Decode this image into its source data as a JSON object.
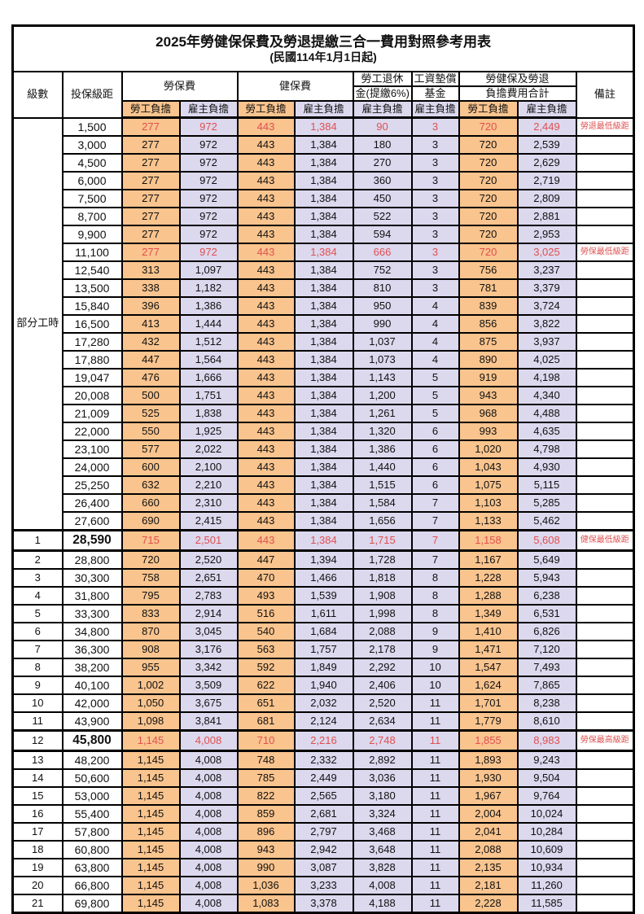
{
  "title": "2025年勞健保保費及勞退提繳三合一費用對照參考用表",
  "subtitle": "(民國114年1月1日起)",
  "header": {
    "level": "級數",
    "bracket": "投保級距",
    "labor_insurance": "勞保費",
    "health_insurance": "健保費",
    "pension_line1": "勞工退休",
    "pension_line2": "金(提繳6%)",
    "wage_fund_line1": "工資墊償",
    "wage_fund_line2": "基金",
    "total_line1": "勞健保及勞退",
    "total_line2": "負擔費用合計",
    "remark": "備註",
    "employee": "勞工負擔",
    "employer": "雇主負擔"
  },
  "part_time_label": "部分工時",
  "part_time_rowspan": 23,
  "colors": {
    "employee_bg": "#F9C48E",
    "employer_bg": "#DCD8EE",
    "highlight_text": "#E05050",
    "grid": "#000000"
  },
  "remarks_legend": {
    "pension_min": "勞退最低級距",
    "labor_min": "勞保最低級距",
    "health_min": "健保最低級距",
    "labor_max": "勞保最高級距"
  },
  "rows": [
    {
      "br": "1,500",
      "a": "277",
      "b": "972",
      "c": "443",
      "d": "1,384",
      "e": "90",
      "f": "3",
      "g": "720",
      "h": "2,449",
      "rk": "勞退最低級距",
      "red": true
    },
    {
      "br": "3,000",
      "a": "277",
      "b": "972",
      "c": "443",
      "d": "1,384",
      "e": "180",
      "f": "3",
      "g": "720",
      "h": "2,539"
    },
    {
      "br": "4,500",
      "a": "277",
      "b": "972",
      "c": "443",
      "d": "1,384",
      "e": "270",
      "f": "3",
      "g": "720",
      "h": "2,629"
    },
    {
      "br": "6,000",
      "a": "277",
      "b": "972",
      "c": "443",
      "d": "1,384",
      "e": "360",
      "f": "3",
      "g": "720",
      "h": "2,719"
    },
    {
      "br": "7,500",
      "a": "277",
      "b": "972",
      "c": "443",
      "d": "1,384",
      "e": "450",
      "f": "3",
      "g": "720",
      "h": "2,809"
    },
    {
      "br": "8,700",
      "a": "277",
      "b": "972",
      "c": "443",
      "d": "1,384",
      "e": "522",
      "f": "3",
      "g": "720",
      "h": "2,881"
    },
    {
      "br": "9,900",
      "a": "277",
      "b": "972",
      "c": "443",
      "d": "1,384",
      "e": "594",
      "f": "3",
      "g": "720",
      "h": "2,953"
    },
    {
      "br": "11,100",
      "a": "277",
      "b": "972",
      "c": "443",
      "d": "1,384",
      "e": "666",
      "f": "3",
      "g": "720",
      "h": "3,025",
      "rk": "勞保最低級距",
      "red": true
    },
    {
      "br": "12,540",
      "a": "313",
      "b": "1,097",
      "c": "443",
      "d": "1,384",
      "e": "752",
      "f": "3",
      "g": "756",
      "h": "3,237"
    },
    {
      "br": "13,500",
      "a": "338",
      "b": "1,182",
      "c": "443",
      "d": "1,384",
      "e": "810",
      "f": "3",
      "g": "781",
      "h": "3,379"
    },
    {
      "br": "15,840",
      "a": "396",
      "b": "1,386",
      "c": "443",
      "d": "1,384",
      "e": "950",
      "f": "4",
      "g": "839",
      "h": "3,724"
    },
    {
      "br": "16,500",
      "a": "413",
      "b": "1,444",
      "c": "443",
      "d": "1,384",
      "e": "990",
      "f": "4",
      "g": "856",
      "h": "3,822"
    },
    {
      "br": "17,280",
      "a": "432",
      "b": "1,512",
      "c": "443",
      "d": "1,384",
      "e": "1,037",
      "f": "4",
      "g": "875",
      "h": "3,937"
    },
    {
      "br": "17,880",
      "a": "447",
      "b": "1,564",
      "c": "443",
      "d": "1,384",
      "e": "1,073",
      "f": "4",
      "g": "890",
      "h": "4,025"
    },
    {
      "br": "19,047",
      "a": "476",
      "b": "1,666",
      "c": "443",
      "d": "1,384",
      "e": "1,143",
      "f": "5",
      "g": "919",
      "h": "4,198"
    },
    {
      "br": "20,008",
      "a": "500",
      "b": "1,751",
      "c": "443",
      "d": "1,384",
      "e": "1,200",
      "f": "5",
      "g": "943",
      "h": "4,340"
    },
    {
      "br": "21,009",
      "a": "525",
      "b": "1,838",
      "c": "443",
      "d": "1,384",
      "e": "1,261",
      "f": "5",
      "g": "968",
      "h": "4,488"
    },
    {
      "br": "22,000",
      "a": "550",
      "b": "1,925",
      "c": "443",
      "d": "1,384",
      "e": "1,320",
      "f": "6",
      "g": "993",
      "h": "4,635"
    },
    {
      "br": "23,100",
      "a": "577",
      "b": "2,022",
      "c": "443",
      "d": "1,384",
      "e": "1,386",
      "f": "6",
      "g": "1,020",
      "h": "4,798"
    },
    {
      "br": "24,000",
      "a": "600",
      "b": "2,100",
      "c": "443",
      "d": "1,384",
      "e": "1,440",
      "f": "6",
      "g": "1,043",
      "h": "4,930"
    },
    {
      "br": "25,250",
      "a": "632",
      "b": "2,210",
      "c": "443",
      "d": "1,384",
      "e": "1,515",
      "f": "6",
      "g": "1,075",
      "h": "5,115"
    },
    {
      "br": "26,400",
      "a": "660",
      "b": "2,310",
      "c": "443",
      "d": "1,384",
      "e": "1,584",
      "f": "7",
      "g": "1,103",
      "h": "5,285"
    },
    {
      "br": "27,600",
      "a": "690",
      "b": "2,415",
      "c": "443",
      "d": "1,384",
      "e": "1,656",
      "f": "7",
      "g": "1,133",
      "h": "5,462"
    },
    {
      "lv": "1",
      "br": "28,590",
      "a": "715",
      "b": "2,501",
      "c": "443",
      "d": "1,384",
      "e": "1,715",
      "f": "7",
      "g": "1,158",
      "h": "5,608",
      "rk": "健保最低級距",
      "red": true,
      "emph": true
    },
    {
      "lv": "2",
      "br": "28,800",
      "a": "720",
      "b": "2,520",
      "c": "447",
      "d": "1,394",
      "e": "1,728",
      "f": "7",
      "g": "1,167",
      "h": "5,649"
    },
    {
      "lv": "3",
      "br": "30,300",
      "a": "758",
      "b": "2,651",
      "c": "470",
      "d": "1,466",
      "e": "1,818",
      "f": "8",
      "g": "1,228",
      "h": "5,943"
    },
    {
      "lv": "4",
      "br": "31,800",
      "a": "795",
      "b": "2,783",
      "c": "493",
      "d": "1,539",
      "e": "1,908",
      "f": "8",
      "g": "1,288",
      "h": "6,238"
    },
    {
      "lv": "5",
      "br": "33,300",
      "a": "833",
      "b": "2,914",
      "c": "516",
      "d": "1,611",
      "e": "1,998",
      "f": "8",
      "g": "1,349",
      "h": "6,531"
    },
    {
      "lv": "6",
      "br": "34,800",
      "a": "870",
      "b": "3,045",
      "c": "540",
      "d": "1,684",
      "e": "2,088",
      "f": "9",
      "g": "1,410",
      "h": "6,826"
    },
    {
      "lv": "7",
      "br": "36,300",
      "a": "908",
      "b": "3,176",
      "c": "563",
      "d": "1,757",
      "e": "2,178",
      "f": "9",
      "g": "1,471",
      "h": "7,120"
    },
    {
      "lv": "8",
      "br": "38,200",
      "a": "955",
      "b": "3,342",
      "c": "592",
      "d": "1,849",
      "e": "2,292",
      "f": "10",
      "g": "1,547",
      "h": "7,493"
    },
    {
      "lv": "9",
      "br": "40,100",
      "a": "1,002",
      "b": "3,509",
      "c": "622",
      "d": "1,940",
      "e": "2,406",
      "f": "10",
      "g": "1,624",
      "h": "7,865"
    },
    {
      "lv": "10",
      "br": "42,000",
      "a": "1,050",
      "b": "3,675",
      "c": "651",
      "d": "2,032",
      "e": "2,520",
      "f": "11",
      "g": "1,701",
      "h": "8,238"
    },
    {
      "lv": "11",
      "br": "43,900",
      "a": "1,098",
      "b": "3,841",
      "c": "681",
      "d": "2,124",
      "e": "2,634",
      "f": "11",
      "g": "1,779",
      "h": "8,610"
    },
    {
      "lv": "12",
      "br": "45,800",
      "a": "1,145",
      "b": "4,008",
      "c": "710",
      "d": "2,216",
      "e": "2,748",
      "f": "11",
      "g": "1,855",
      "h": "8,983",
      "rk": "勞保最高級距",
      "red": true,
      "emph": true
    },
    {
      "lv": "13",
      "br": "48,200",
      "a": "1,145",
      "b": "4,008",
      "c": "748",
      "d": "2,332",
      "e": "2,892",
      "f": "11",
      "g": "1,893",
      "h": "9,243"
    },
    {
      "lv": "14",
      "br": "50,600",
      "a": "1,145",
      "b": "4,008",
      "c": "785",
      "d": "2,449",
      "e": "3,036",
      "f": "11",
      "g": "1,930",
      "h": "9,504"
    },
    {
      "lv": "15",
      "br": "53,000",
      "a": "1,145",
      "b": "4,008",
      "c": "822",
      "d": "2,565",
      "e": "3,180",
      "f": "11",
      "g": "1,967",
      "h": "9,764"
    },
    {
      "lv": "16",
      "br": "55,400",
      "a": "1,145",
      "b": "4,008",
      "c": "859",
      "d": "2,681",
      "e": "3,324",
      "f": "11",
      "g": "2,004",
      "h": "10,024"
    },
    {
      "lv": "17",
      "br": "57,800",
      "a": "1,145",
      "b": "4,008",
      "c": "896",
      "d": "2,797",
      "e": "3,468",
      "f": "11",
      "g": "2,041",
      "h": "10,284"
    },
    {
      "lv": "18",
      "br": "60,800",
      "a": "1,145",
      "b": "4,008",
      "c": "943",
      "d": "2,942",
      "e": "3,648",
      "f": "11",
      "g": "2,088",
      "h": "10,609"
    },
    {
      "lv": "19",
      "br": "63,800",
      "a": "1,145",
      "b": "4,008",
      "c": "990",
      "d": "3,087",
      "e": "3,828",
      "f": "11",
      "g": "2,135",
      "h": "10,934"
    },
    {
      "lv": "20",
      "br": "66,800",
      "a": "1,145",
      "b": "4,008",
      "c": "1,036",
      "d": "3,233",
      "e": "4,008",
      "f": "11",
      "g": "2,181",
      "h": "11,260"
    },
    {
      "lv": "21",
      "br": "69,800",
      "a": "1,145",
      "b": "4,008",
      "c": "1,083",
      "d": "3,378",
      "e": "4,188",
      "f": "11",
      "g": "2,228",
      "h": "11,585"
    }
  ]
}
